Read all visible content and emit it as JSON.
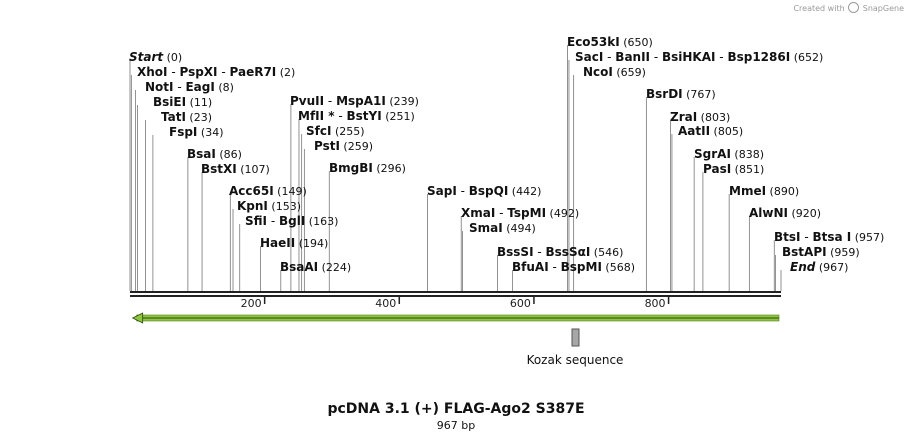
{
  "credit": {
    "prefix": "Created with",
    "brand": "SnapGene"
  },
  "plasmid": {
    "name": "pcDNA 3.1 (+) FLAG-Ago2 S387E",
    "length_label": "967 bp",
    "length_bp": 967
  },
  "ruler": {
    "ticks": [
      200,
      400,
      600,
      800
    ]
  },
  "sites": [
    {
      "labels": [
        "Start"
      ],
      "pos": 0,
      "pos_label": "(0)",
      "italic": true
    },
    {
      "labels": [
        "XhoI",
        "PspXI",
        "PaeR7I"
      ],
      "pos": 2,
      "pos_label": "(2)"
    },
    {
      "labels": [
        "NotI",
        "EagI"
      ],
      "pos": 8,
      "pos_label": "(8)"
    },
    {
      "labels": [
        "BsiEI"
      ],
      "pos": 11,
      "pos_label": "(11)"
    },
    {
      "labels": [
        "TatI"
      ],
      "pos": 23,
      "pos_label": "(23)"
    },
    {
      "labels": [
        "FspI"
      ],
      "pos": 34,
      "pos_label": "(34)"
    },
    {
      "labels": [
        "BsaI"
      ],
      "pos": 86,
      "pos_label": "(86)"
    },
    {
      "labels": [
        "BstXI"
      ],
      "pos": 107,
      "pos_label": "(107)"
    },
    {
      "labels": [
        "Acc65I"
      ],
      "pos": 149,
      "pos_label": "(149)"
    },
    {
      "labels": [
        "KpnI"
      ],
      "pos": 153,
      "pos_label": "(153)"
    },
    {
      "labels": [
        "SfiI",
        "BglI"
      ],
      "pos": 163,
      "pos_label": "(163)"
    },
    {
      "labels": [
        "HaeII"
      ],
      "pos": 194,
      "pos_label": "(194)"
    },
    {
      "labels": [
        "BsaAI"
      ],
      "pos": 224,
      "pos_label": "(224)"
    },
    {
      "labels": [
        "PvuII",
        "MspA1I"
      ],
      "pos": 239,
      "pos_label": "(239)"
    },
    {
      "labels": [
        "MfII *",
        "BstYI"
      ],
      "pos": 251,
      "pos_label": "(251)"
    },
    {
      "labels": [
        "SfcI"
      ],
      "pos": 255,
      "pos_label": "(255)"
    },
    {
      "labels": [
        "PstI"
      ],
      "pos": 259,
      "pos_label": "(259)"
    },
    {
      "labels": [
        "BmgBI"
      ],
      "pos": 296,
      "pos_label": "(296)"
    },
    {
      "labels": [
        "SapI",
        "BspQI"
      ],
      "pos": 442,
      "pos_label": "(442)"
    },
    {
      "labels": [
        "XmaI",
        "TspMI"
      ],
      "pos": 492,
      "pos_label": "(492)"
    },
    {
      "labels": [
        "SmaI"
      ],
      "pos": 494,
      "pos_label": "(494)"
    },
    {
      "labels": [
        "BssSI",
        "BssSαI"
      ],
      "pos": 546,
      "pos_label": "(546)"
    },
    {
      "labels": [
        "BfuAI",
        "BspMI"
      ],
      "pos": 568,
      "pos_label": "(568)"
    },
    {
      "labels": [
        "Eco53kI"
      ],
      "pos": 650,
      "pos_label": "(650)"
    },
    {
      "labels": [
        "SacI",
        "BanII",
        "BsiHKAI",
        "Bsp1286I"
      ],
      "pos": 652,
      "pos_label": "(652)"
    },
    {
      "labels": [
        "NcoI"
      ],
      "pos": 659,
      "pos_label": "(659)"
    },
    {
      "labels": [
        "BsrDI"
      ],
      "pos": 767,
      "pos_label": "(767)"
    },
    {
      "labels": [
        "ZraI"
      ],
      "pos": 803,
      "pos_label": "(803)"
    },
    {
      "labels": [
        "AatII"
      ],
      "pos": 805,
      "pos_label": "(805)"
    },
    {
      "labels": [
        "SgrAI"
      ],
      "pos": 838,
      "pos_label": "(838)"
    },
    {
      "labels": [
        "PasI"
      ],
      "pos": 851,
      "pos_label": "(851)"
    },
    {
      "labels": [
        "MmeI"
      ],
      "pos": 890,
      "pos_label": "(890)"
    },
    {
      "labels": [
        "AlwNI"
      ],
      "pos": 920,
      "pos_label": "(920)"
    },
    {
      "labels": [
        "BtsI",
        "Btsa I"
      ],
      "pos": 957,
      "pos_label": "(957)"
    },
    {
      "labels": [
        "BstAPI"
      ],
      "pos": 959,
      "pos_label": "(959)"
    },
    {
      "labels": [
        "End"
      ],
      "pos": 967,
      "pos_label": "(967)",
      "italic": true
    }
  ],
  "features": [
    {
      "name": "",
      "type": "arrow",
      "direction": "reverse",
      "start": 1,
      "end": 967,
      "color": "#8dc63f"
    },
    {
      "name": "Kozak sequence",
      "type": "box",
      "start": 656,
      "end": 666,
      "color": "#a7a7a7"
    }
  ],
  "colors": {
    "backbone": "#222222",
    "leader": "#777777",
    "text": "#111111"
  }
}
